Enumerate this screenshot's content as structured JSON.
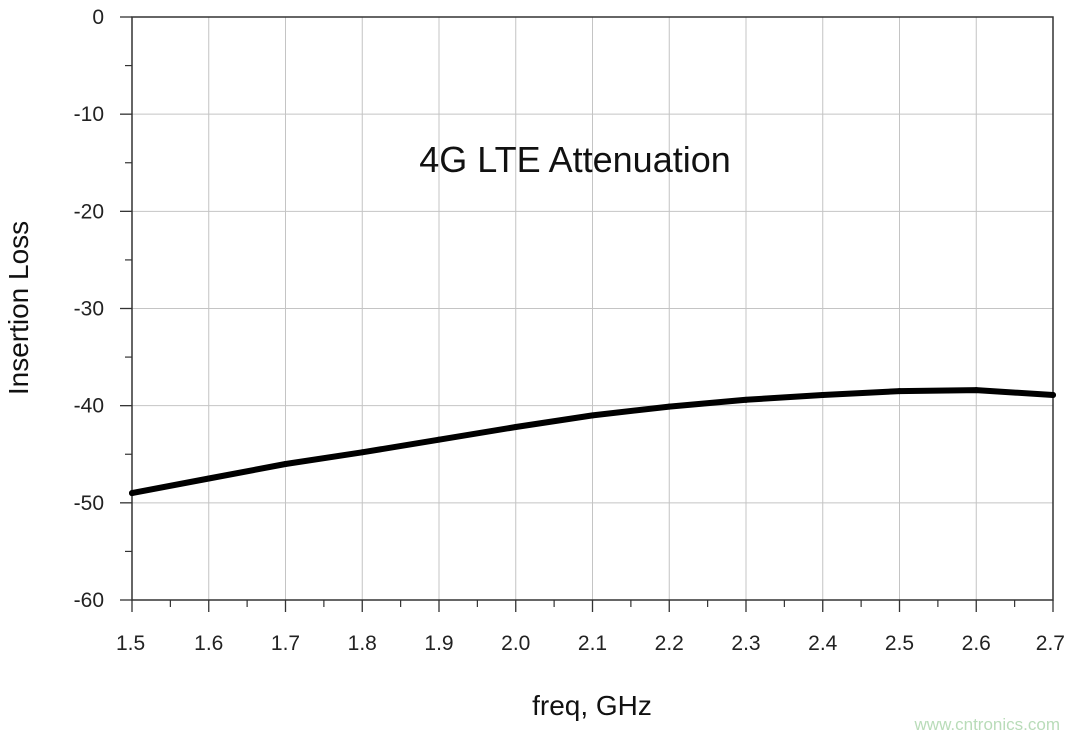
{
  "chart_data": {
    "type": "line",
    "xlabel": "freq, GHz",
    "ylabel": "Insertion Loss",
    "annotation": "4G LTE Attenuation",
    "xlim": [
      1.5,
      2.7
    ],
    "ylim": [
      -60,
      0
    ],
    "x_ticks": [
      "1.5",
      "1.6",
      "1.7",
      "1.8",
      "1.9",
      "2.0",
      "2.1",
      "2.2",
      "2.3",
      "2.4",
      "2.5",
      "2.6",
      "2.7"
    ],
    "y_ticks": [
      "0",
      "-10",
      "-20",
      "-30",
      "-40",
      "-50",
      "-60"
    ],
    "grid": true,
    "legend": "none",
    "series": [
      {
        "color": "#000000",
        "x": [
          1.5,
          1.6,
          1.7,
          1.8,
          1.9,
          2.0,
          2.1,
          2.2,
          2.3,
          2.4,
          2.5,
          2.6,
          2.7
        ],
        "y": [
          -49.0,
          -47.5,
          -46.0,
          -44.8,
          -43.5,
          -42.2,
          -41.0,
          -40.1,
          -39.4,
          -38.9,
          -38.5,
          -38.4,
          -38.9
        ]
      }
    ]
  },
  "watermark": "www.cntronics.com"
}
